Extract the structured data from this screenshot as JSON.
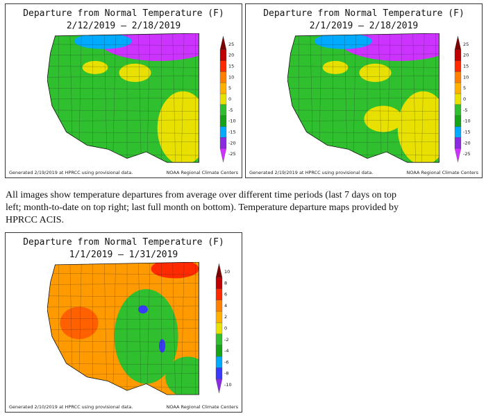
{
  "caption": "All images show temperature departures from average over different time periods (last 7 days on top left; month-to-date on top right; last full month on bottom). Temperature departure maps provided by HPRCC ACIS.",
  "maps": [
    {
      "title": "Departure from Normal Temperature (F)",
      "period": "2/12/2019 – 2/18/2019",
      "footer_left": "Generated 2/19/2019 at HPRCC using provisional data.",
      "footer_right": "NOAA Regional Climate Centers",
      "legend_labels": [
        "25",
        "20",
        "15",
        "10",
        "5",
        "0",
        "-5",
        "-10",
        "-15",
        "-20",
        "-25"
      ],
      "legend_colors": [
        "#7a0000",
        "#c00000",
        "#ff2a00",
        "#ff8000",
        "#ffb000",
        "#e8e000",
        "#2fbf2f",
        "#17a317",
        "#00aaff",
        "#8a2be2",
        "#cc33ff"
      ],
      "map_colors": {
        "base": "#2fbf2f",
        "cold": "#cc33ff",
        "mid": "#e8e000",
        "cool": "#00aaff"
      }
    },
    {
      "title": "Departure from Normal Temperature (F)",
      "period": "2/1/2019 – 2/18/2019",
      "footer_left": "Generated 2/19/2019 at HPRCC using provisional data.",
      "footer_right": "NOAA Regional Climate Centers",
      "legend_labels": [
        "25",
        "20",
        "15",
        "10",
        "5",
        "0",
        "-5",
        "-10",
        "-15",
        "-20",
        "-25"
      ],
      "legend_colors": [
        "#7a0000",
        "#c00000",
        "#ff2a00",
        "#ff8000",
        "#ffb000",
        "#e8e000",
        "#2fbf2f",
        "#17a317",
        "#00aaff",
        "#8a2be2",
        "#cc33ff"
      ],
      "map_colors": {
        "base": "#2fbf2f",
        "cold": "#cc33ff",
        "mid": "#e8e000",
        "cool": "#00aaff"
      }
    },
    {
      "title": "Departure from Normal Temperature (F)",
      "period": "1/1/2019 – 1/31/2019",
      "footer_left": "Generated 2/10/2019 at HPRCC using provisional data.",
      "footer_right": "NOAA Regional Climate Centers",
      "legend_labels": [
        "10",
        "8",
        "6",
        "4",
        "2",
        "0",
        "-2",
        "-4",
        "-6",
        "-8",
        "-10"
      ],
      "legend_colors": [
        "#7a0000",
        "#c00000",
        "#ff2a00",
        "#ff8000",
        "#ffb000",
        "#e8e000",
        "#2fbf2f",
        "#17a317",
        "#00aaff",
        "#3a3aff",
        "#8a2be2"
      ],
      "map_colors": {
        "base": "#ff9a00",
        "cold": "#2fbf2f",
        "mid": "#ffb000",
        "cool": "#3a3aff"
      }
    }
  ]
}
